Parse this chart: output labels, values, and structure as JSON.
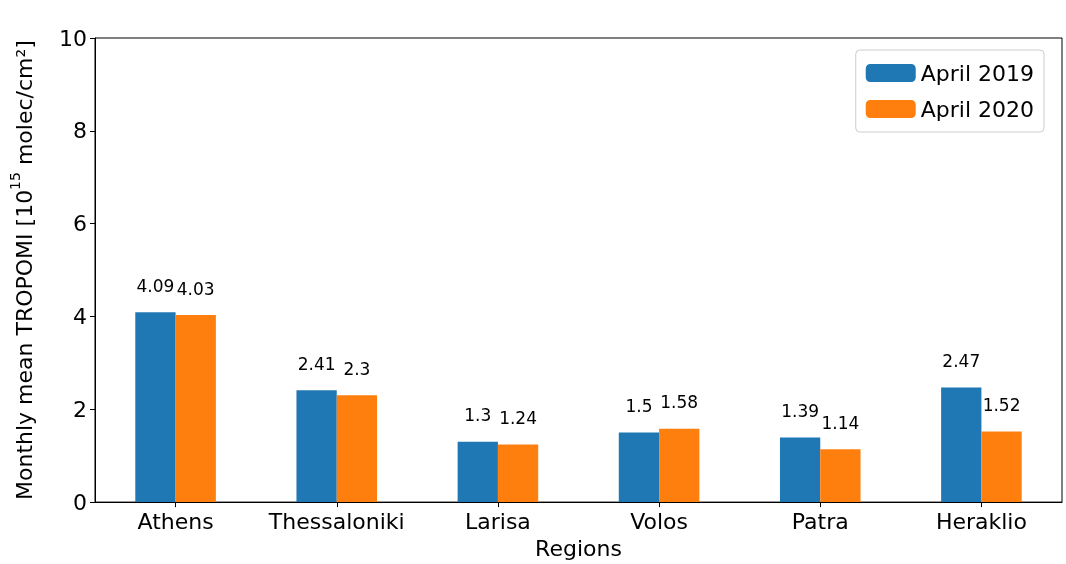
{
  "chart_data": {
    "type": "bar",
    "xlabel": "Regions",
    "ylabel": "Monthly mean TROPOMI [10$^{15}$ molec/cm²]",
    "categories": [
      "Athens",
      "Thessaloniki",
      "Larisa",
      "Volos",
      "Patra",
      "Heraklio"
    ],
    "series": [
      {
        "name": "April 2019",
        "color": "#1f77b4",
        "values": [
          4.09,
          2.41,
          1.3,
          1.5,
          1.39,
          2.47
        ]
      },
      {
        "name": "April 2020",
        "color": "#ff7f0e",
        "values": [
          4.03,
          2.3,
          1.24,
          1.58,
          1.14,
          1.52
        ]
      }
    ],
    "ylim": [
      0,
      10
    ],
    "yticks": [
      0,
      2,
      4,
      6,
      8,
      10
    ],
    "grid": false,
    "legend": "top right",
    "data_labels": true
  }
}
